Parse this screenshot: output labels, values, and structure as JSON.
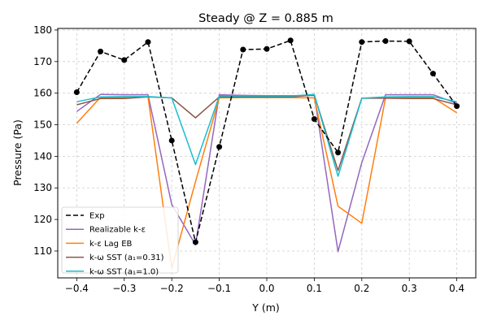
{
  "chart_data": {
    "type": "line",
    "title": "Steady @ Z = 0.885 m",
    "xlabel": "Y (m)",
    "ylabel": "Pressure (Pa)",
    "xlim": [
      -0.44,
      0.44
    ],
    "ylim": [
      101.5,
      180.5
    ],
    "xticks": [
      -0.4,
      -0.3,
      -0.2,
      -0.1,
      0.0,
      0.1,
      0.2,
      0.3,
      0.4
    ],
    "xtick_labels": [
      "−0.4",
      "−0.3",
      "−0.2",
      "−0.1",
      "0.0",
      "0.1",
      "0.2",
      "0.3",
      "0.4"
    ],
    "yticks": [
      110,
      120,
      130,
      140,
      150,
      160,
      170,
      180
    ],
    "ytick_labels": [
      "110",
      "120",
      "130",
      "140",
      "150",
      "160",
      "170",
      "180"
    ],
    "grid": true,
    "legend_position": "lower-left",
    "series": [
      {
        "name": "Exp",
        "color": "#000000",
        "style": "dashed-markers",
        "x": [
          -0.4,
          -0.35,
          -0.3,
          -0.25,
          -0.2,
          -0.15,
          -0.1,
          -0.05,
          0.0,
          0.05,
          0.1,
          0.15,
          0.2,
          0.25,
          0.3,
          0.35,
          0.4
        ],
        "y": [
          160.3,
          173.2,
          170.5,
          176.2,
          145.0,
          112.8,
          143.0,
          173.8,
          174.0,
          176.7,
          151.8,
          141.2,
          176.2,
          176.5,
          176.4,
          166.2,
          155.9
        ]
      },
      {
        "name": "Realizable k-ε",
        "color": "#9467bd",
        "style": "solid",
        "x": [
          -0.4,
          -0.35,
          -0.3,
          -0.25,
          -0.2,
          -0.15,
          -0.1,
          -0.05,
          0.0,
          0.05,
          0.1,
          0.15,
          0.2,
          0.25,
          0.3,
          0.35,
          0.4
        ],
        "y": [
          154.2,
          159.6,
          159.5,
          159.5,
          124.7,
          112.0,
          159.5,
          159.3,
          159.2,
          159.2,
          159.3,
          109.8,
          138.0,
          159.5,
          159.5,
          159.5,
          156.8
        ]
      },
      {
        "name": "k-ε Lag EB",
        "color": "#ff7f0e",
        "style": "solid",
        "x": [
          -0.4,
          -0.35,
          -0.3,
          -0.25,
          -0.2,
          -0.15,
          -0.1,
          -0.05,
          0.0,
          0.05,
          0.1,
          0.15,
          0.2,
          0.25,
          0.3,
          0.35,
          0.4
        ],
        "y": [
          150.5,
          158.7,
          158.7,
          158.8,
          104.5,
          132.0,
          158.5,
          158.6,
          158.6,
          158.6,
          158.5,
          124.2,
          118.8,
          158.5,
          158.6,
          158.6,
          153.8
        ]
      },
      {
        "name": "k-ω SST (a₁=0.31)",
        "color": "#8c564b",
        "style": "solid",
        "x": [
          -0.4,
          -0.35,
          -0.3,
          -0.25,
          -0.2,
          -0.15,
          -0.1,
          -0.05,
          0.0,
          0.05,
          0.1,
          0.15,
          0.2,
          0.25,
          0.3,
          0.35,
          0.4
        ],
        "y": [
          156.3,
          158.3,
          158.3,
          158.8,
          158.5,
          152.2,
          158.8,
          158.8,
          158.8,
          158.8,
          159.4,
          135.5,
          158.4,
          158.4,
          158.3,
          158.3,
          156.3
        ]
      },
      {
        "name": "k-ω SST (a₁=1.0)",
        "color": "#17becf",
        "style": "solid",
        "x": [
          -0.4,
          -0.35,
          -0.3,
          -0.25,
          -0.2,
          -0.15,
          -0.1,
          -0.05,
          0.0,
          0.05,
          0.1,
          0.15,
          0.2,
          0.25,
          0.3,
          0.35,
          0.4
        ],
        "y": [
          157.3,
          158.8,
          158.9,
          158.9,
          158.5,
          137.4,
          159.1,
          159.1,
          159.1,
          159.1,
          159.6,
          133.7,
          158.4,
          158.8,
          158.9,
          158.9,
          157.3
        ]
      }
    ]
  }
}
